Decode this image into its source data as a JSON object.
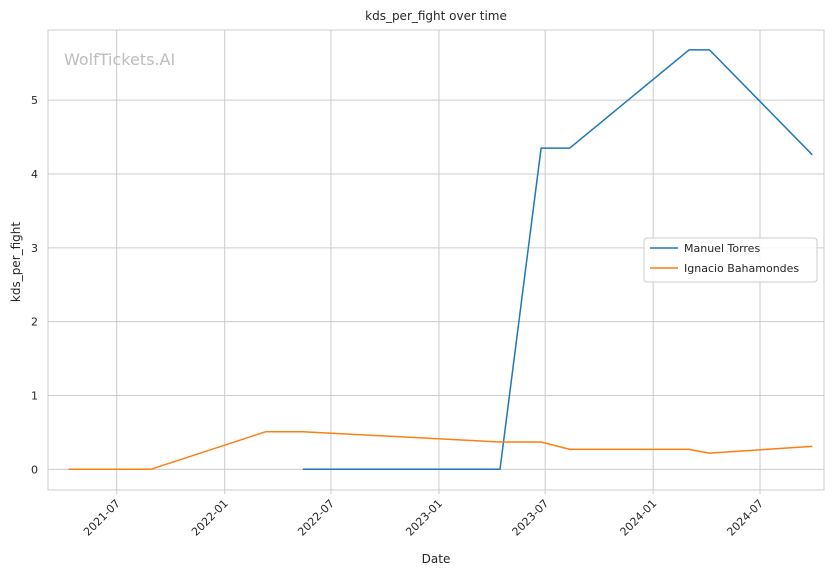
{
  "chart_data": {
    "type": "line",
    "title": "kds_per_fight over time",
    "xlabel": "Date",
    "ylabel": "kds_per_fight",
    "watermark": "WolfTickets.AI",
    "x_ticks": [
      "2021-07",
      "2022-01",
      "2022-07",
      "2023-01",
      "2023-07",
      "2024-01",
      "2024-07"
    ],
    "y_ticks": [
      "0",
      "1",
      "2",
      "3",
      "4",
      "5"
    ],
    "xlim": [
      "2021-03-06",
      "2024-10-18"
    ],
    "ylim": [
      -0.28,
      5.95
    ],
    "grid": true,
    "legend_position": "center-right",
    "series": [
      {
        "name": "Manuel Torres",
        "color": "#1f77b4",
        "points": [
          [
            "2022-05-14",
            0
          ],
          [
            "2023-04-15",
            0
          ],
          [
            "2023-06-24",
            4.35
          ],
          [
            "2023-08-12",
            4.35
          ],
          [
            "2024-03-02",
            5.68
          ],
          [
            "2024-04-06",
            5.68
          ],
          [
            "2024-09-28",
            4.26
          ]
        ]
      },
      {
        "name": "Ignacio Bahamondes",
        "color": "#ff7f0e",
        "points": [
          [
            "2021-04-10",
            0
          ],
          [
            "2021-08-28",
            0
          ],
          [
            "2022-03-12",
            0.51
          ],
          [
            "2022-05-14",
            0.51
          ],
          [
            "2023-04-15",
            0.37
          ],
          [
            "2023-06-24",
            0.37
          ],
          [
            "2023-08-12",
            0.27
          ],
          [
            "2024-03-02",
            0.27
          ],
          [
            "2024-04-06",
            0.22
          ],
          [
            "2024-09-28",
            0.31
          ]
        ]
      }
    ]
  }
}
